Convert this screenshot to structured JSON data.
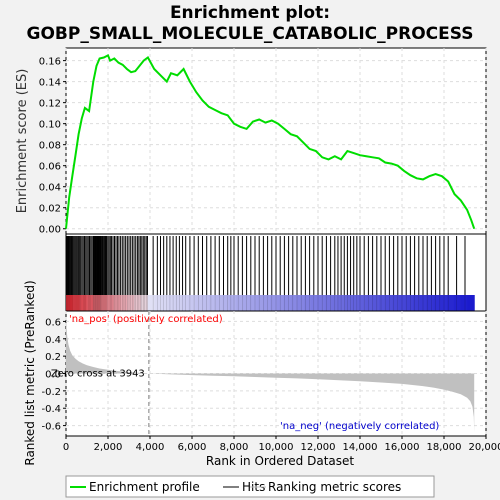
{
  "chart_data": {
    "type": "line",
    "title_line1": "Enrichment plot:",
    "title_line2": "GOBP_SMALL_MOLECULE_CATABOLIC_PROCESS",
    "es_panel": {
      "ylabel": "Enrichment score (ES)",
      "ylim": [
        -0.005,
        0.172
      ],
      "yticks": [
        0.0,
        0.02,
        0.04,
        0.06,
        0.08,
        0.1,
        0.12,
        0.14,
        0.16
      ],
      "ytick_labels": [
        "0.00",
        "0.02",
        "0.04",
        "0.06",
        "0.08",
        "0.10",
        "0.12",
        "0.14",
        "0.16"
      ],
      "grid": true,
      "series": [
        {
          "name": "Enrichment profile",
          "color": "#00dd00",
          "x": [
            0,
            150,
            300,
            450,
            600,
            750,
            900,
            1100,
            1300,
            1450,
            1600,
            1800,
            2000,
            2100,
            2300,
            2500,
            2700,
            2900,
            3100,
            3300,
            3500,
            3700,
            3900,
            4200,
            4500,
            4800,
            5000,
            5300,
            5600,
            5900,
            6200,
            6500,
            6800,
            7100,
            7400,
            7700,
            8000,
            8300,
            8600,
            8900,
            9200,
            9500,
            9800,
            10100,
            10400,
            10700,
            11000,
            11300,
            11600,
            11900,
            12200,
            12500,
            12800,
            13100,
            13400,
            13700,
            14000,
            14300,
            14600,
            14900,
            15200,
            15500,
            15800,
            16100,
            16400,
            16700,
            17000,
            17300,
            17600,
            17900,
            18200,
            18500,
            18800,
            19100,
            19300,
            19440
          ],
          "y": [
            0.0,
            0.03,
            0.05,
            0.07,
            0.09,
            0.105,
            0.115,
            0.112,
            0.14,
            0.155,
            0.162,
            0.163,
            0.165,
            0.16,
            0.162,
            0.158,
            0.156,
            0.152,
            0.149,
            0.15,
            0.155,
            0.16,
            0.163,
            0.152,
            0.146,
            0.14,
            0.148,
            0.146,
            0.152,
            0.14,
            0.13,
            0.122,
            0.116,
            0.113,
            0.11,
            0.108,
            0.1,
            0.097,
            0.095,
            0.102,
            0.104,
            0.101,
            0.103,
            0.1,
            0.095,
            0.09,
            0.088,
            0.082,
            0.076,
            0.074,
            0.068,
            0.066,
            0.069,
            0.066,
            0.074,
            0.072,
            0.07,
            0.069,
            0.068,
            0.067,
            0.063,
            0.062,
            0.06,
            0.055,
            0.051,
            0.048,
            0.047,
            0.05,
            0.052,
            0.05,
            0.045,
            0.033,
            0.027,
            0.018,
            0.008,
            0.0
          ]
        }
      ]
    },
    "hits_panel": {
      "hit_ranks": [
        20,
        40,
        70,
        100,
        140,
        180,
        220,
        260,
        300,
        340,
        390,
        440,
        490,
        540,
        600,
        650,
        700,
        760,
        820,
        880,
        940,
        1000,
        1060,
        1120,
        1180,
        1240,
        1300,
        1330,
        1360,
        1390,
        1420,
        1450,
        1480,
        1510,
        1540,
        1570,
        1600,
        1630,
        1660,
        1700,
        1740,
        1780,
        1830,
        1880,
        1930,
        1990,
        2050,
        2110,
        2170,
        2240,
        2310,
        2380,
        2450,
        2520,
        2600,
        2680,
        2760,
        2840,
        2920,
        3000,
        3080,
        3160,
        3240,
        3320,
        3400,
        3470,
        3540,
        3610,
        3680,
        3750,
        3820,
        3880,
        4150,
        4350,
        4500,
        4650,
        4800,
        4950,
        5100,
        5250,
        5400,
        5550,
        5700,
        5900,
        6100,
        6300,
        6500,
        6700,
        6900,
        7100,
        7300,
        7500,
        7700,
        7850,
        8000,
        8200,
        8400,
        8600,
        8800,
        9000,
        9200,
        9400,
        9600,
        9800,
        10000,
        10200,
        10400,
        10600,
        10800,
        11000,
        11200,
        11400,
        11600,
        11800,
        12000,
        12200,
        12400,
        12600,
        12800,
        12950,
        13100,
        13250,
        13400,
        13550,
        13700,
        13850,
        14000,
        14200,
        14400,
        14600,
        14800,
        15000,
        15200,
        15400,
        15600,
        15800,
        16000,
        16200,
        16400,
        16600,
        16800,
        17000,
        17200,
        17400,
        17600,
        17800,
        18000,
        18200,
        18600,
        19000
      ]
    },
    "rank_panel": {
      "ylabel": "Ranked list metric (PreRanked)",
      "xlabel": "Rank in Ordered Dataset",
      "ylim": [
        -0.72,
        0.72
      ],
      "yticks": [
        -0.6,
        -0.4,
        -0.2,
        0.0,
        0.2,
        0.4,
        0.6
      ],
      "ytick_labels": [
        "-0.6",
        "-0.4",
        "-0.2",
        "0.0",
        "0.2",
        "0.4",
        "0.6"
      ],
      "xlim": [
        0,
        20000
      ],
      "xticks": [
        0,
        2000,
        4000,
        6000,
        8000,
        10000,
        12000,
        14000,
        16000,
        18000,
        20000
      ],
      "xtick_labels": [
        "0",
        "2,000",
        "4,000",
        "6,000",
        "8,000",
        "10,000",
        "12,000",
        "14,000",
        "16,000",
        "18,000",
        "20,000"
      ],
      "zero_cross_rank": 3943,
      "zero_cross_label": "Zero cross at 3943",
      "pos_label": "'na_pos' (positively correlated)",
      "neg_label": "'na_neg' (negatively correlated)",
      "metric_x": [
        0,
        20,
        60,
        120,
        200,
        300,
        450,
        600,
        800,
        1000,
        1300,
        1600,
        2000,
        2500,
        3000,
        3500,
        3943,
        5000,
        6000,
        7000,
        8000,
        9000,
        10000,
        11000,
        12000,
        13000,
        14000,
        15000,
        16000,
        17000,
        17500,
        18000,
        18400,
        18800,
        19100,
        19250,
        19350,
        19420,
        19440
      ],
      "metric_y": [
        0.65,
        0.55,
        0.42,
        0.33,
        0.26,
        0.21,
        0.17,
        0.14,
        0.115,
        0.095,
        0.075,
        0.058,
        0.043,
        0.028,
        0.016,
        0.007,
        0.0,
        -0.01,
        -0.018,
        -0.025,
        -0.032,
        -0.04,
        -0.048,
        -0.057,
        -0.067,
        -0.078,
        -0.09,
        -0.104,
        -0.12,
        -0.145,
        -0.162,
        -0.185,
        -0.21,
        -0.24,
        -0.28,
        -0.32,
        -0.38,
        -0.5,
        -0.68
      ],
      "fill_color": "#c0c0c0",
      "pos_color": "#ff0000",
      "neg_color": "#0000ff"
    },
    "legend": {
      "placement": "bottom",
      "items": [
        {
          "label": "Enrichment profile",
          "color": "#00dd00",
          "kind": "line"
        },
        {
          "label": "Hits",
          "color": "#000000",
          "kind": "line"
        },
        {
          "label": "Ranking metric scores",
          "color": "#c0c0c0",
          "kind": "line"
        }
      ]
    }
  }
}
